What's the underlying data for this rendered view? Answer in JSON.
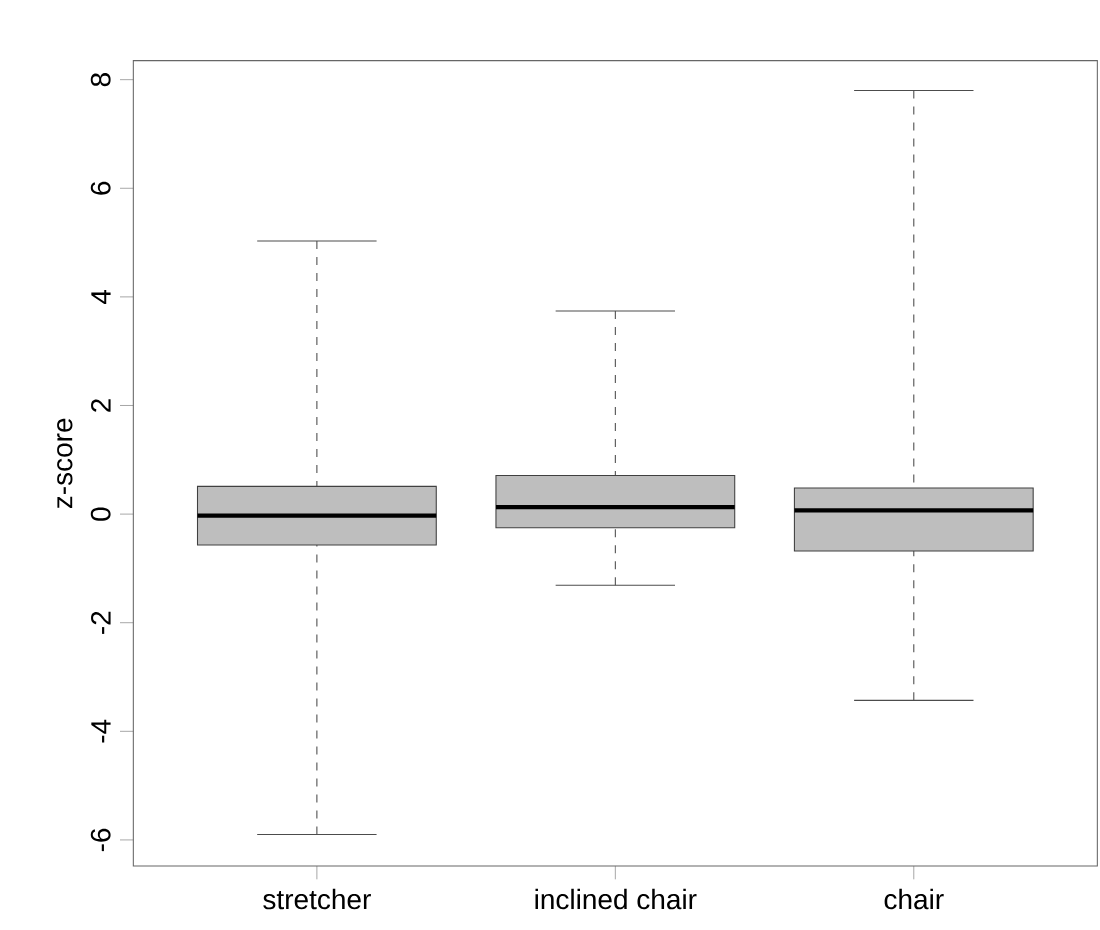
{
  "chart_data": {
    "type": "box",
    "ylabel": "z-score",
    "categories": [
      "stretcher",
      "inclined chair",
      "chair"
    ],
    "color": "#bebebe",
    "boxes": [
      {
        "low": -5.9,
        "q1": -0.57,
        "median": -0.03,
        "q3": 0.51,
        "high": 5.03
      },
      {
        "low": -1.31,
        "q1": -0.25,
        "median": 0.13,
        "q3": 0.71,
        "high": 3.74
      },
      {
        "low": -3.43,
        "q1": -0.68,
        "median": 0.07,
        "q3": 0.48,
        "high": 7.8
      }
    ],
    "ylim": [
      -6.48,
      8.35
    ],
    "yticks": [
      -6,
      -4,
      -2,
      0,
      2,
      4,
      6,
      8
    ]
  }
}
